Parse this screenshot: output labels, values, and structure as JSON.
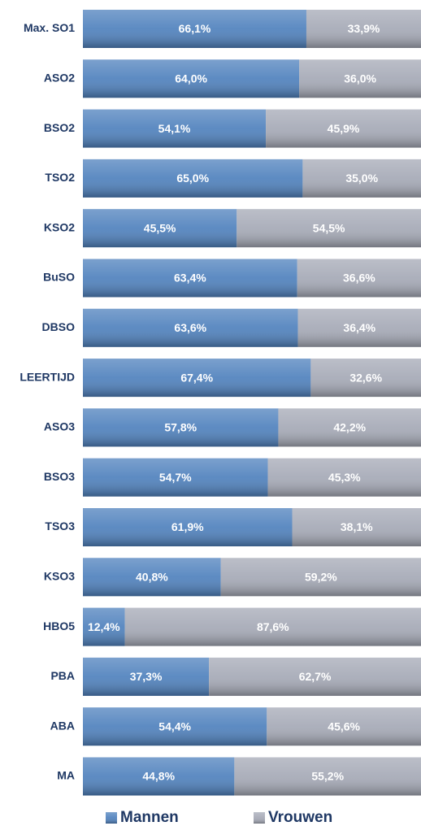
{
  "chart_data": {
    "type": "stacked-bar-horizontal",
    "categories": [
      "Max. SO1",
      "ASO2",
      "BSO2",
      "TSO2",
      "KSO2",
      "BuSO",
      "DBSO",
      "LEERTIJD",
      "ASO3",
      "BSO3",
      "TSO3",
      "KSO3",
      "HBO5",
      "PBA",
      "ABA",
      "MA"
    ],
    "series": [
      {
        "name": "Mannen",
        "color": "#4f81bd",
        "values": [
          66.1,
          64.0,
          54.1,
          65.0,
          45.5,
          63.4,
          63.6,
          67.4,
          57.8,
          54.7,
          61.9,
          40.8,
          12.4,
          37.3,
          54.4,
          44.8
        ],
        "value_labels": [
          "66,1%",
          "64,0%",
          "54,1%",
          "65,0%",
          "45,5%",
          "63,4%",
          "63,6%",
          "67,4%",
          "57,8%",
          "54,7%",
          "61,9%",
          "40,8%",
          "12,4%",
          "37,3%",
          "54,4%",
          "44,8%"
        ]
      },
      {
        "name": "Vrouwen",
        "color": "#a5a9b6",
        "values": [
          33.9,
          36.0,
          45.9,
          35.0,
          54.5,
          36.6,
          36.4,
          32.6,
          42.2,
          45.3,
          38.1,
          59.2,
          87.6,
          62.7,
          45.6,
          55.2
        ],
        "value_labels": [
          "33,9%",
          "36,0%",
          "45,9%",
          "35,0%",
          "54,5%",
          "36,6%",
          "36,4%",
          "32,6%",
          "42,2%",
          "45,3%",
          "38,1%",
          "59,2%",
          "87,6%",
          "62,7%",
          "45,6%",
          "55,2%"
        ]
      }
    ],
    "xlim": [
      0,
      100
    ]
  }
}
